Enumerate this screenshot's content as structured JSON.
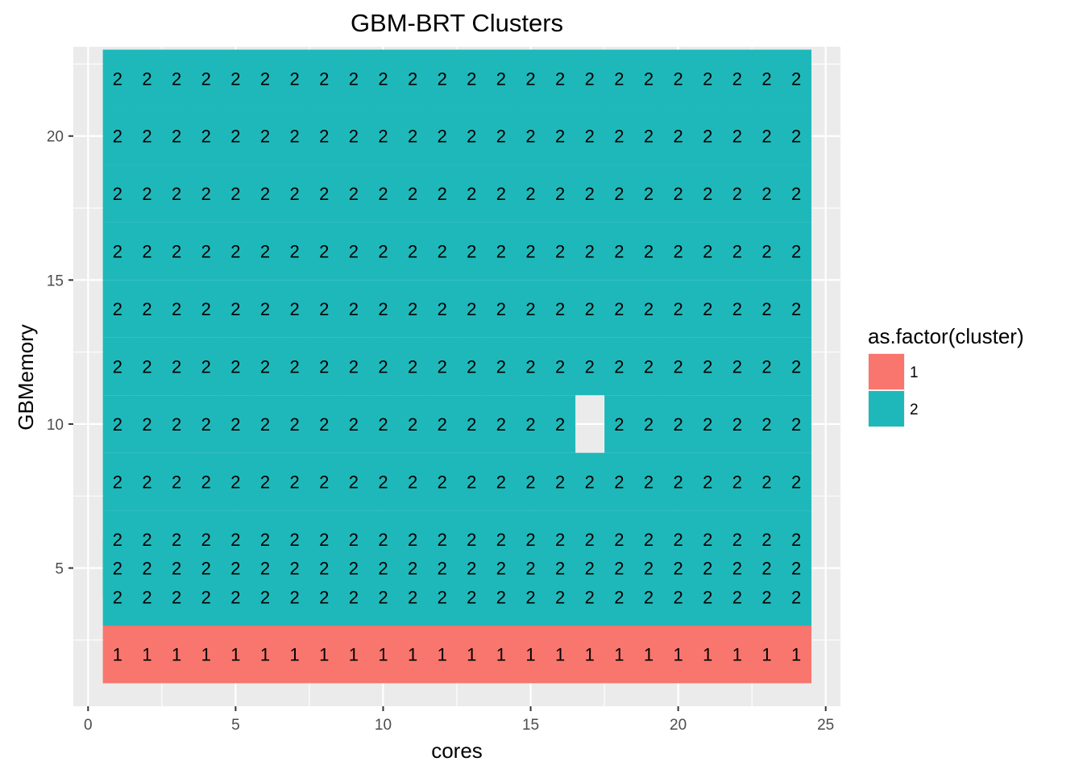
{
  "chart_data": {
    "type": "heatmap",
    "title": "GBM-BRT Clusters",
    "xlabel": "cores",
    "ylabel": "GBMemory",
    "xlim": [
      -0.5,
      25.5
    ],
    "ylim": [
      0.2,
      23.1
    ],
    "x_ticks": [
      0,
      5,
      10,
      15,
      20,
      25
    ],
    "y_ticks": [
      5,
      10,
      15,
      20
    ],
    "grid": true,
    "legend": {
      "title": "as.factor(cluster)",
      "position": "right",
      "items": [
        {
          "label": "1",
          "color": "#F8766D"
        },
        {
          "label": "2",
          "color": "#1FB8BA"
        }
      ]
    },
    "cores": [
      1,
      2,
      3,
      4,
      5,
      6,
      7,
      8,
      9,
      10,
      11,
      12,
      13,
      14,
      15,
      16,
      17,
      18,
      19,
      20,
      21,
      22,
      23,
      24
    ],
    "rows": [
      {
        "memory": 2,
        "cluster": "1",
        "missing_cores": []
      },
      {
        "memory": 4,
        "cluster": "2",
        "missing_cores": []
      },
      {
        "memory": 5,
        "cluster": "2",
        "missing_cores": []
      },
      {
        "memory": 6,
        "cluster": "2",
        "missing_cores": []
      },
      {
        "memory": 8,
        "cluster": "2",
        "missing_cores": []
      },
      {
        "memory": 10,
        "cluster": "2",
        "missing_cores": [
          17
        ]
      },
      {
        "memory": 12,
        "cluster": "2",
        "missing_cores": []
      },
      {
        "memory": 14,
        "cluster": "2",
        "missing_cores": []
      },
      {
        "memory": 16,
        "cluster": "2",
        "missing_cores": []
      },
      {
        "memory": 18,
        "cluster": "2",
        "missing_cores": []
      },
      {
        "memory": 20,
        "cluster": "2",
        "missing_cores": []
      },
      {
        "memory": 22,
        "cluster": "2",
        "missing_cores": []
      }
    ]
  }
}
